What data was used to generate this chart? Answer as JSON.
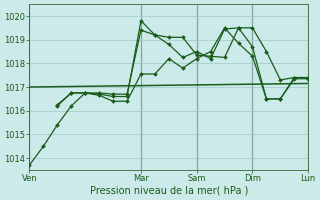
{
  "background_color": "#cceaea",
  "grid_color": "#a0c8c8",
  "line_color": "#1a5c1a",
  "xlabel": "Pression niveau de la mer( hPa )",
  "ylim": [
    1013.5,
    1020.5
  ],
  "yticks": [
    1014,
    1015,
    1016,
    1017,
    1018,
    1019,
    1020
  ],
  "xlim": [
    0,
    120
  ],
  "day_labels": [
    "Ven",
    "Mar",
    "Sam",
    "Dim",
    "Lun"
  ],
  "day_positions": [
    0,
    48,
    72,
    96,
    120
  ],
  "vline_color": "#336633",
  "lines": [
    {
      "x": [
        0,
        6,
        12,
        18,
        24,
        30,
        36,
        42,
        48,
        54,
        60,
        66,
        72,
        78,
        84,
        90,
        96,
        102,
        108,
        114,
        120
      ],
      "y": [
        1013.7,
        1014.5,
        1015.4,
        1016.2,
        1016.75,
        1016.75,
        1016.7,
        1016.7,
        1019.4,
        1019.2,
        1019.1,
        1019.1,
        1018.35,
        1018.3,
        1018.25,
        1019.5,
        1019.5,
        1018.5,
        1017.3,
        1017.4,
        1017.4
      ],
      "marker": true,
      "lw": 0.9
    },
    {
      "x": [
        12,
        18,
        24,
        30,
        36,
        42,
        48,
        54,
        60,
        66,
        72,
        78,
        84,
        90,
        96,
        102,
        108,
        114,
        120
      ],
      "y": [
        1016.2,
        1016.75,
        1016.75,
        1016.7,
        1016.6,
        1016.6,
        1019.8,
        1019.2,
        1018.8,
        1018.25,
        1018.5,
        1018.2,
        1019.45,
        1019.5,
        1018.7,
        1016.5,
        1016.5,
        1017.4,
        1017.4
      ],
      "marker": true,
      "lw": 0.9
    },
    {
      "x": [
        12,
        18,
        24,
        30,
        36,
        42,
        48,
        54,
        60,
        66,
        72,
        78,
        84,
        90,
        96,
        102,
        108,
        114,
        120
      ],
      "y": [
        1016.25,
        1016.75,
        1016.75,
        1016.65,
        1016.4,
        1016.4,
        1017.55,
        1017.55,
        1018.2,
        1017.8,
        1018.2,
        1018.5,
        1019.5,
        1018.85,
        1018.3,
        1016.5,
        1016.5,
        1017.35,
        1017.35
      ],
      "marker": true,
      "lw": 0.9
    },
    {
      "x": [
        0,
        120
      ],
      "y": [
        1017.0,
        1017.15
      ],
      "marker": false,
      "lw": 1.1
    }
  ]
}
